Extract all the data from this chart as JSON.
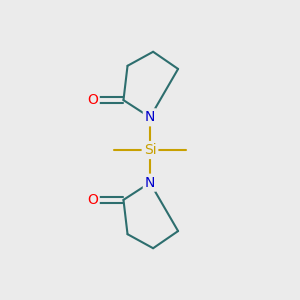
{
  "bg_color": "#ebebeb",
  "bond_color": "#2d6e6e",
  "si_color": "#c8a000",
  "n_color": "#0000cc",
  "o_color": "#ff0000",
  "si_label": "Si",
  "n_label": "N",
  "o_label": "O",
  "font_size_atom": 10,
  "fig_width": 3.0,
  "fig_height": 3.0,
  "dpi": 100
}
